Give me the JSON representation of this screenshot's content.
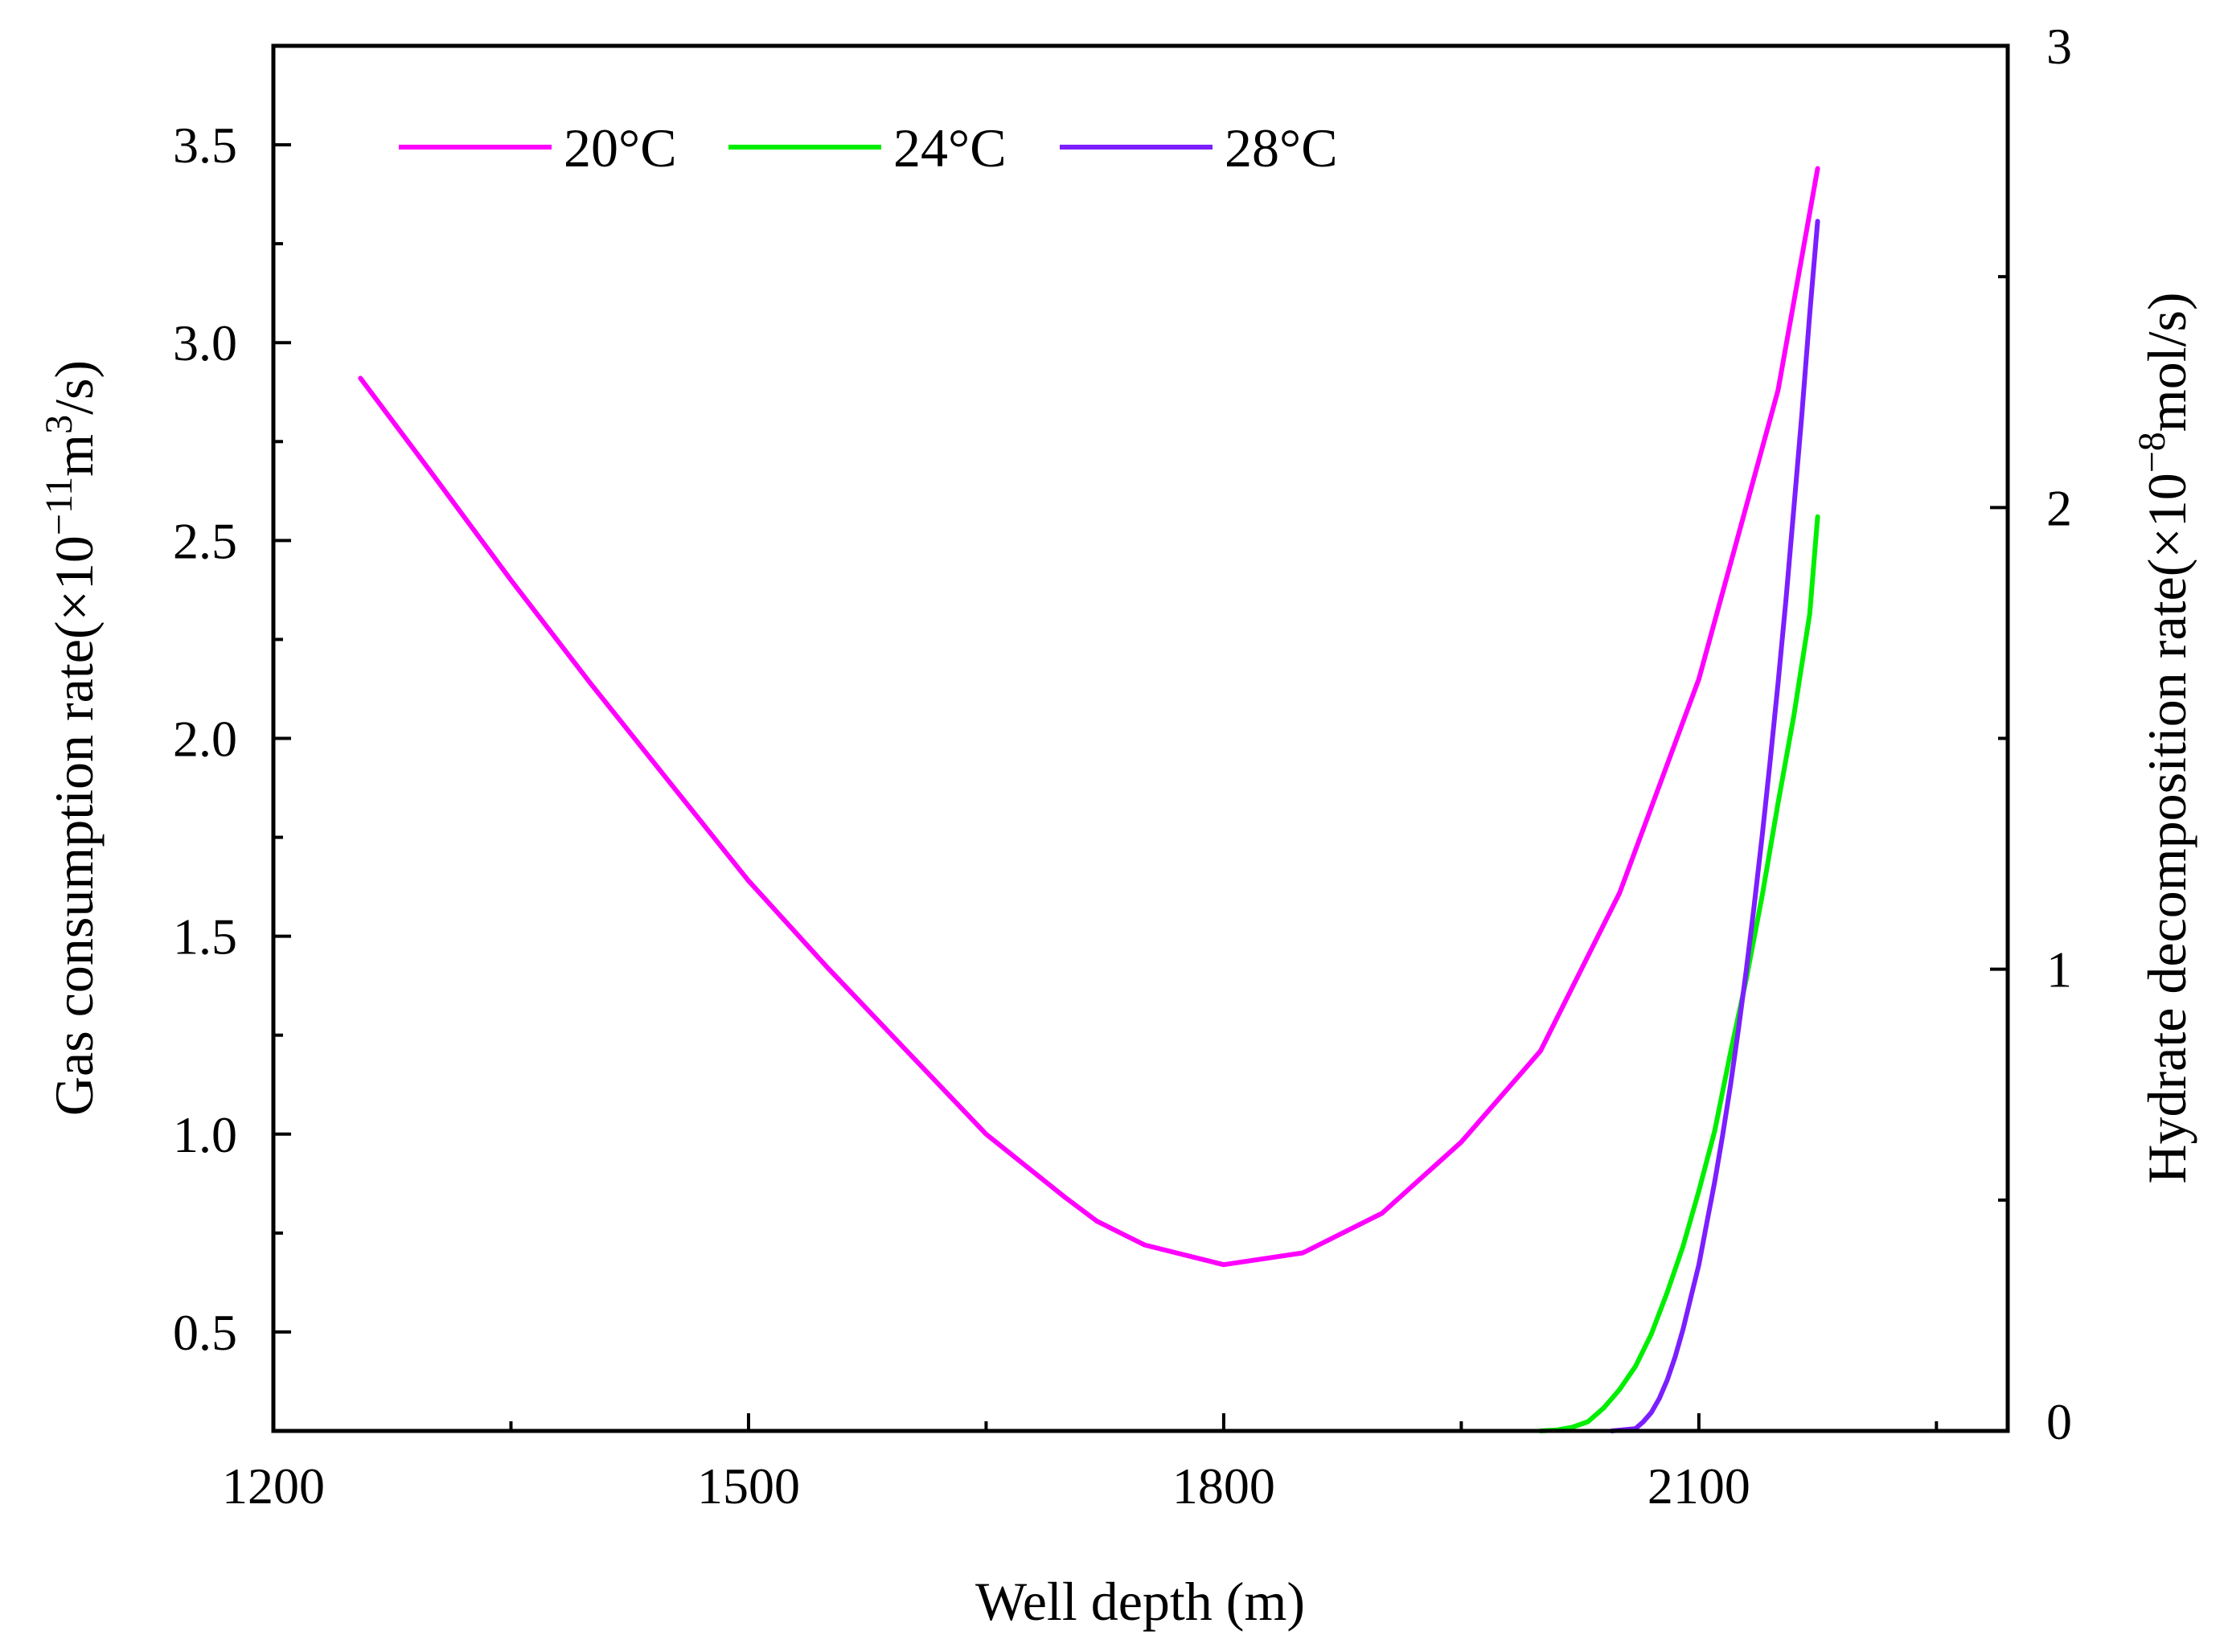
{
  "chart_data": {
    "type": "line",
    "title": "",
    "xlabel": "Well depth (m)",
    "ylabel_left": {
      "prefix": "Gas consumption rate(×10",
      "exp1": "−11",
      "mid": "m",
      "exp2": "3",
      "suffix": "/s)"
    },
    "ylabel_right": {
      "prefix": "Hydrate decomposition rate(×10",
      "exp1": "−8",
      "suffix": "mol/s)"
    },
    "xlim": [
      1200,
      2295
    ],
    "ylim_left": [
      0.25,
      3.75
    ],
    "ylim_right": [
      0,
      3
    ],
    "x_ticks": [
      1200,
      1500,
      1800,
      2100
    ],
    "x_tick_labels": [
      "1200",
      "1500",
      "1800",
      "2100"
    ],
    "x_minor_ticks": [
      1350,
      1650,
      1950,
      2250
    ],
    "y_left_ticks": [
      0.5,
      1.0,
      1.5,
      2.0,
      2.5,
      3.0,
      3.5
    ],
    "y_left_tick_labels": [
      "0.5",
      "1.0",
      "1.5",
      "2.0",
      "2.5",
      "3.0",
      "3.5"
    ],
    "y_left_minor_ticks": [
      0.75,
      1.25,
      1.75,
      2.25,
      2.75,
      3.25
    ],
    "y_right_ticks": [
      0,
      1,
      2,
      3
    ],
    "y_right_tick_labels": [
      "0",
      "1",
      "2",
      "3"
    ],
    "y_right_minor_ticks": [
      0.5,
      1.5,
      2.5
    ],
    "legend_position": "top-left",
    "series": [
      {
        "name": "20°C",
        "color": "#ff00ff",
        "axis": "left",
        "x": [
          1255,
          1300,
          1350,
          1400,
          1450,
          1500,
          1550,
          1600,
          1650,
          1700,
          1720,
          1750,
          1800,
          1850,
          1900,
          1950,
          2000,
          2050,
          2100,
          2150,
          2175
        ],
        "y": [
          2.91,
          2.67,
          2.4,
          2.14,
          1.89,
          1.64,
          1.42,
          1.21,
          1.0,
          0.84,
          0.78,
          0.72,
          0.67,
          0.7,
          0.8,
          0.98,
          1.21,
          1.61,
          2.15,
          2.88,
          3.44
        ]
      },
      {
        "name": "24°C",
        "color": "#00ee00",
        "axis": "right",
        "x": [
          2000,
          2010,
          2020,
          2030,
          2040,
          2050,
          2060,
          2070,
          2080,
          2090,
          2100,
          2110,
          2120,
          2130,
          2140,
          2150,
          2160,
          2170,
          2175
        ],
        "y": [
          0.0,
          0.002,
          0.008,
          0.02,
          0.05,
          0.09,
          0.14,
          0.21,
          0.3,
          0.4,
          0.52,
          0.65,
          0.82,
          0.98,
          1.16,
          1.36,
          1.55,
          1.77,
          1.98
        ]
      },
      {
        "name": "28°C",
        "color": "#7b1fff",
        "axis": "right",
        "x": [
          2045,
          2060,
          2065,
          2070,
          2075,
          2080,
          2085,
          2090,
          2095,
          2100,
          2105,
          2110,
          2115,
          2120,
          2125,
          2130,
          2135,
          2140,
          2145,
          2150,
          2155,
          2160,
          2165,
          2170,
          2175
        ],
        "y": [
          0.0,
          0.005,
          0.02,
          0.04,
          0.07,
          0.11,
          0.16,
          0.22,
          0.29,
          0.36,
          0.45,
          0.54,
          0.64,
          0.75,
          0.87,
          1.0,
          1.14,
          1.29,
          1.45,
          1.62,
          1.8,
          2.0,
          2.2,
          2.42,
          2.62
        ]
      }
    ]
  }
}
